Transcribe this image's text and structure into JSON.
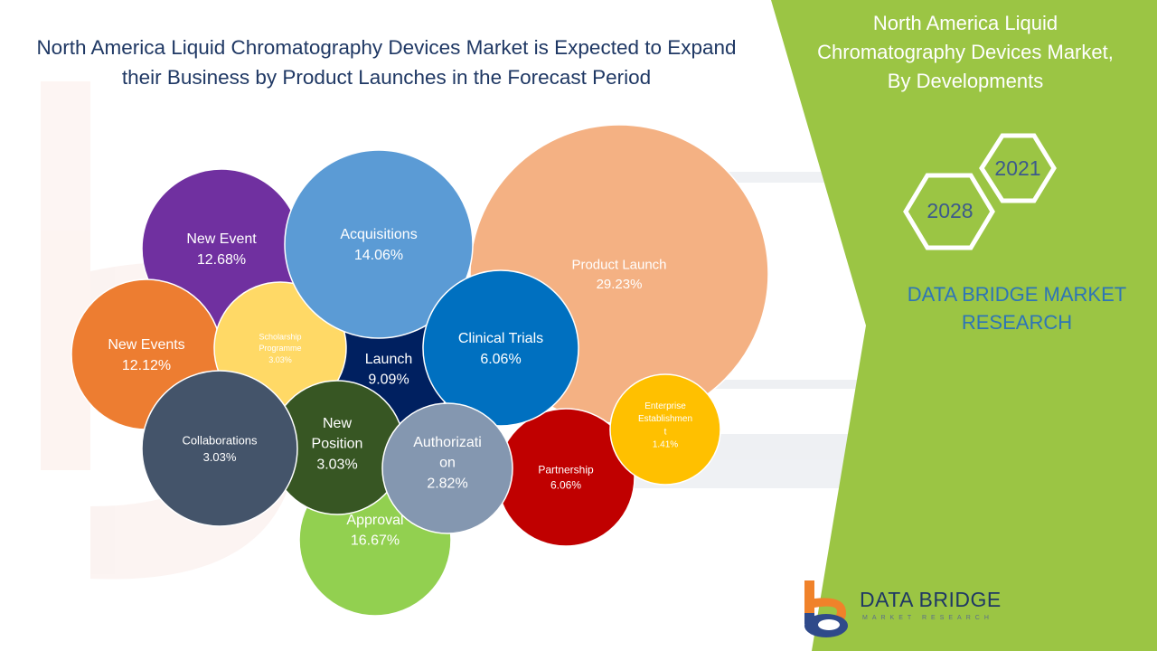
{
  "title_lines": [
    "North America Liquid Chromatography Devices Market is Expected to Expand",
    "their Business by Product Launches in the Forecast Period"
  ],
  "side_title_lines": [
    "North America Liquid",
    "Chromatography Devices Market,",
    "By Developments"
  ],
  "years": {
    "start": "2021",
    "end": "2028"
  },
  "brand_text_lines": [
    "DATA BRIDGE MARKET",
    "RESEARCH"
  ],
  "logo": {
    "name": "DATA BRIDGE",
    "tagline": "MARKET RESEARCH"
  },
  "colors": {
    "title": "#1f3864",
    "green_panel": "#9bc544",
    "brand_blue": "#2e75b6",
    "logo_orange": "#f0822a",
    "logo_blue": "#2f4a8a"
  },
  "chart_data": {
    "type": "bubble",
    "unit": "%",
    "series": [
      {
        "label_lines": [
          "Product Launch",
          "29.23%"
        ],
        "category": "Product Launch",
        "value": 29.23,
        "color": "#f4b183",
        "text_color": "#ffffff"
      },
      {
        "label_lines": [
          "Partnership",
          "6.06%"
        ],
        "category": "Partnership",
        "value": 6.06,
        "color": "#c00000",
        "text_color": "#ffffff"
      },
      {
        "label_lines": [
          "Enterprise",
          "Establishmen",
          "t",
          "1.41%"
        ],
        "category": "Enterprise Establishment",
        "value": 1.41,
        "color": "#ffc000",
        "text_color": "#ffffff"
      },
      {
        "label_lines": [
          "New Event",
          "12.68%"
        ],
        "category": "New Event",
        "value": 12.68,
        "color": "#7030a0",
        "text_color": "#ffffff"
      },
      {
        "label_lines": [
          "Launch",
          "9.09%"
        ],
        "category": "Launch",
        "value": 9.09,
        "color": "#002060",
        "text_color": "#ffffff"
      },
      {
        "label_lines": [
          "New Events",
          "12.12%"
        ],
        "category": "New Events",
        "value": 12.12,
        "color": "#ed7d31",
        "text_color": "#ffffff"
      },
      {
        "label_lines": [
          "Scholarship",
          "Programme",
          "3.03%"
        ],
        "category": "Scholarship Programme",
        "value": 3.03,
        "color": "#ffd966",
        "text_color": "#ffffff"
      },
      {
        "label_lines": [
          "Approval",
          "16.67%"
        ],
        "category": "Approval",
        "value": 16.67,
        "color": "#92d050",
        "text_color": "#ffffff"
      },
      {
        "label_lines": [
          "New",
          "Position",
          "3.03%"
        ],
        "category": "New Position",
        "value": 3.03,
        "color": "#375623",
        "text_color": "#ffffff"
      },
      {
        "label_lines": [
          "Collaborations",
          "3.03%"
        ],
        "category": "Collaborations",
        "value": 3.03,
        "color": "#44546a",
        "text_color": "#ffffff"
      },
      {
        "label_lines": [
          "Acquisitions",
          "14.06%"
        ],
        "category": "Acquisitions",
        "value": 14.06,
        "color": "#5b9bd5",
        "text_color": "#ffffff"
      },
      {
        "label_lines": [
          "Clinical Trials",
          "6.06%"
        ],
        "category": "Clinical Trials",
        "value": 6.06,
        "color": "#0070c0",
        "text_color": "#ffffff"
      },
      {
        "label_lines": [
          "Authorizati",
          "on",
          "2.82%"
        ],
        "category": "Authorization",
        "value": 2.82,
        "color": "#8497b0",
        "text_color": "#ffffff"
      }
    ]
  }
}
